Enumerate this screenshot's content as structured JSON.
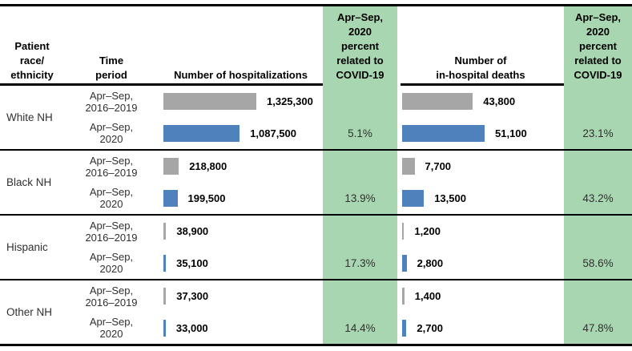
{
  "figure": {
    "description": "Bar chart table of hospitalizations and in-hospital deaths by patient race/ethnicity, Apr–Sep 2016–2019 vs Apr–Sep 2020, with percent related to COVID-19"
  },
  "header": {
    "race_lines": [
      "Patient",
      "race/",
      "ethnicity"
    ],
    "time_lines": [
      "Time",
      "period"
    ],
    "hosp_title": "Number of hospitalizations",
    "deaths_lines": [
      "Number of",
      "in-hospital deaths"
    ],
    "covid_lines": [
      "Apr–Sep,",
      "2020",
      "percent",
      "related to",
      "COVID-19"
    ]
  },
  "rows": {
    "period_lines": [
      [
        "Apr–Sep,",
        "2016–2019"
      ],
      [
        "Apr–Sep,",
        "2020"
      ]
    ]
  },
  "covid_percent": {
    "hospitalizations": [
      "5.1%",
      "13.9%",
      "17.3%",
      "14.4%"
    ],
    "deaths": [
      "23.1%",
      "43.2%",
      "58.6%",
      "47.8%"
    ]
  },
  "chart_data": [
    {
      "type": "bar",
      "orientation": "horizontal",
      "title": "Number of hospitalizations",
      "categories": [
        "White NH",
        "Black NH",
        "Hispanic",
        "Other NH"
      ],
      "series": [
        {
          "name": "Apr–Sep, 2016–2019",
          "color": "#a6a6a6",
          "values": [
            1325300,
            218800,
            38900,
            37300
          ],
          "labels": [
            "1,325,300",
            "218,800",
            "38,900",
            "37,300"
          ]
        },
        {
          "name": "Apr–Sep, 2020",
          "color": "#4f81bd",
          "values": [
            1087500,
            199500,
            35100,
            33000
          ],
          "labels": [
            "1,087,500",
            "199,500",
            "35,100",
            "33,000"
          ]
        }
      ],
      "xlim": [
        0,
        1325300
      ],
      "grid": false,
      "legend": "none",
      "annotation": "Apr–Sep, 2020 percent related to COVID-19: 5.1%, 13.9%, 17.3%, 14.4%"
    },
    {
      "type": "bar",
      "orientation": "horizontal",
      "title": "Number of in-hospital deaths",
      "categories": [
        "White NH",
        "Black NH",
        "Hispanic",
        "Other NH"
      ],
      "series": [
        {
          "name": "Apr–Sep, 2016–2019",
          "color": "#a6a6a6",
          "values": [
            43800,
            7700,
            1200,
            1400
          ],
          "labels": [
            "43,800",
            "7,700",
            "1,200",
            "1,400"
          ]
        },
        {
          "name": "Apr–Sep, 2020",
          "color": "#4f81bd",
          "values": [
            51100,
            13500,
            2800,
            2700
          ],
          "labels": [
            "51,100",
            "13,500",
            "2,800",
            "2,700"
          ]
        }
      ],
      "xlim": [
        0,
        51100
      ],
      "grid": false,
      "legend": "none",
      "annotation": "Apr–Sep, 2020 percent related to COVID-19: 23.1%, 43.2%, 58.6%, 47.8%"
    }
  ],
  "colors": {
    "bar_2016_2019": "#a6a6a6",
    "bar_2020": "#4f81bd",
    "covid_column_bg": "#a8d6b0",
    "border": "#000000"
  }
}
